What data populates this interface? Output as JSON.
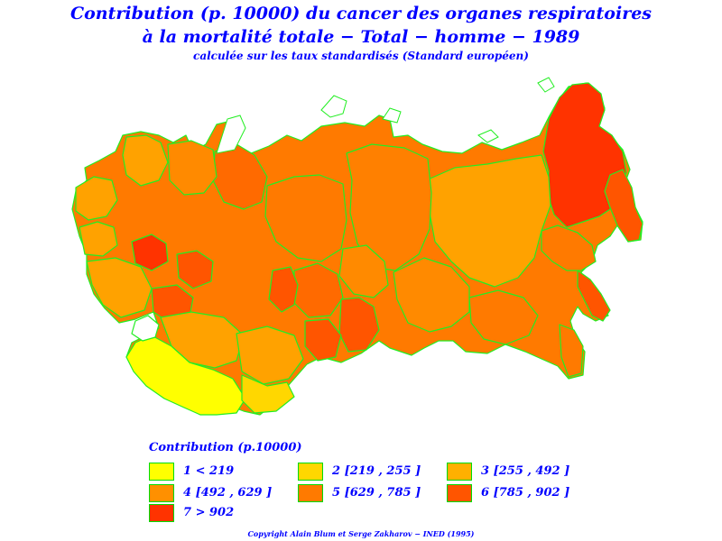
{
  "title": {
    "line1": "Contribution (p. 10000) du cancer des organes respiratoires",
    "line2": "à la mortalité totale − Total − homme − 1989",
    "line3": "calculée sur les taux standardisés (Standard européen)"
  },
  "legend": {
    "title": "Contribution (p.10000)",
    "items": [
      {
        "label": "1  <  219",
        "color": "#ffff00"
      },
      {
        "label": "2 [219 ,  255  ]",
        "color": "#ffd700"
      },
      {
        "label": "3 [255 , 492 ]",
        "color": "#ffb000"
      },
      {
        "label": "4 [492 ,  629  ]",
        "color": "#ff9000"
      },
      {
        "label": "5 [629 ,  785  ]",
        "color": "#ff7a00"
      },
      {
        "label": "6 [785 ,  902 ]",
        "color": "#ff5500"
      },
      {
        "label": "7  >  902",
        "color": "#ff3300"
      }
    ]
  },
  "colors": {
    "border": "#00ff00",
    "text": "#0000ff"
  },
  "copyright": "Copyright Alain Blum et Serge Zakharov  −  INED (1995)"
}
